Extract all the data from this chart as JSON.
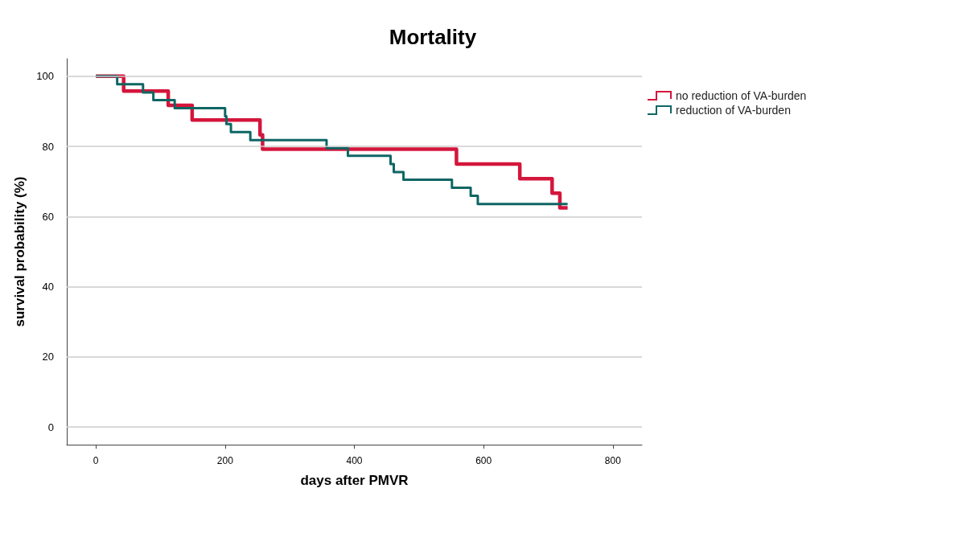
{
  "chart_data": {
    "type": "step",
    "title": "Mortality",
    "xlabel": "days after PMVR",
    "ylabel": "survival probability (%)",
    "xlim": [
      -45,
      845
    ],
    "xticks": [
      0,
      200,
      400,
      600,
      800
    ],
    "ylim": [
      -5,
      105
    ],
    "yticks": [
      0,
      20,
      40,
      60,
      80,
      100
    ],
    "grid": "y",
    "legend": "top right",
    "series": [
      {
        "name": "no reduction of VA-burden",
        "color": "#d4163c",
        "x": [
          0,
          43,
          112,
          149,
          254,
          258,
          558,
          656,
          706,
          718,
          730
        ],
        "values": [
          100,
          95.8,
          91.7,
          87.5,
          83.3,
          79.2,
          75,
          70.8,
          66.7,
          62.5,
          62.5
        ]
      },
      {
        "name": "reduction of VA-burden",
        "color": "#0e6663",
        "x": [
          0,
          33,
          73,
          89,
          122,
          200,
          202,
          209,
          239,
          357,
          390,
          456,
          461,
          476,
          551,
          580,
          591,
          730
        ],
        "values": [
          100,
          97.7,
          95.4,
          93.2,
          90.9,
          88.6,
          86.4,
          84.1,
          81.8,
          79.5,
          77.3,
          75,
          72.7,
          70.5,
          68.2,
          65.9,
          63.6,
          63.6
        ]
      }
    ]
  }
}
